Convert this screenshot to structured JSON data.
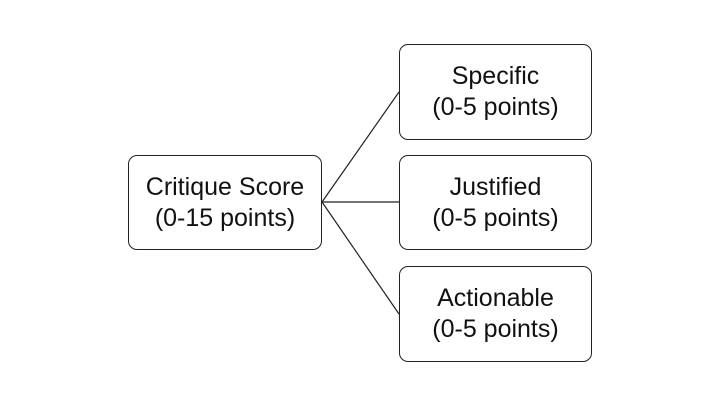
{
  "diagram": {
    "root": {
      "line1": "Critique Score",
      "line2": "(0-15 points)"
    },
    "children": [
      {
        "line1": "Specific",
        "line2": "(0-5 points)"
      },
      {
        "line1": "Justified",
        "line2": "(0-5 points)"
      },
      {
        "line1": "Actionable",
        "line2": "(0-5 points)"
      }
    ]
  },
  "colors": {
    "border": "#222222",
    "text": "#111111",
    "background": "#ffffff"
  }
}
